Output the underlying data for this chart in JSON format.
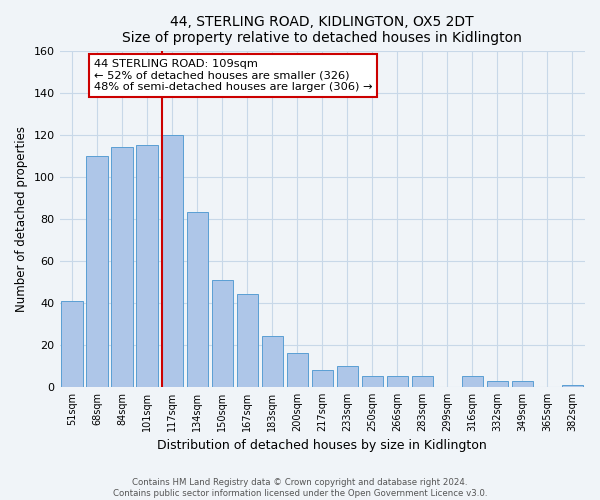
{
  "title": "44, STERLING ROAD, KIDLINGTON, OX5 2DT",
  "subtitle": "Size of property relative to detached houses in Kidlington",
  "xlabel": "Distribution of detached houses by size in Kidlington",
  "ylabel": "Number of detached properties",
  "bar_labels": [
    "51sqm",
    "68sqm",
    "84sqm",
    "101sqm",
    "117sqm",
    "134sqm",
    "150sqm",
    "167sqm",
    "183sqm",
    "200sqm",
    "217sqm",
    "233sqm",
    "250sqm",
    "266sqm",
    "283sqm",
    "299sqm",
    "316sqm",
    "332sqm",
    "349sqm",
    "365sqm",
    "382sqm"
  ],
  "bar_values": [
    41,
    110,
    114,
    115,
    120,
    83,
    51,
    44,
    24,
    16,
    8,
    10,
    5,
    5,
    5,
    0,
    5,
    3,
    3,
    0,
    1
  ],
  "bar_color": "#aec6e8",
  "bar_edge_color": "#5a9fd4",
  "ylim": [
    0,
    160
  ],
  "yticks": [
    0,
    20,
    40,
    60,
    80,
    100,
    120,
    140,
    160
  ],
  "vline_x_idx": 4,
  "vline_color": "#cc0000",
  "annotation_title": "44 STERLING ROAD: 109sqm",
  "annotation_line1": "← 52% of detached houses are smaller (326)",
  "annotation_line2": "48% of semi-detached houses are larger (306) →",
  "footer1": "Contains HM Land Registry data © Crown copyright and database right 2024.",
  "footer2": "Contains public sector information licensed under the Open Government Licence v3.0.",
  "bg_color": "#f0f4f8",
  "grid_color": "#c8d8e8"
}
